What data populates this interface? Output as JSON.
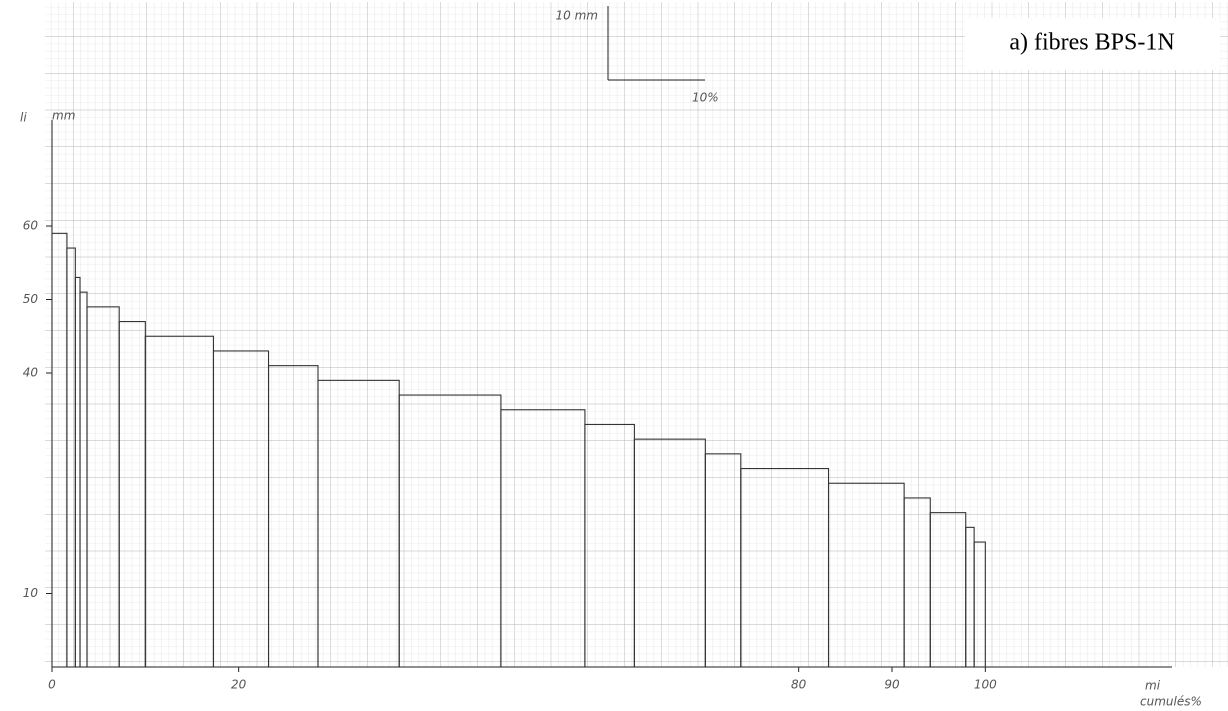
{
  "chart_data": {
    "type": "histogram",
    "title": "a) fibres BPS-1N",
    "ylabel": "li",
    "yunit": "mm",
    "xlabel": "mi",
    "xunit": "cumulés%",
    "scale_y": "10 mm",
    "scale_x": "10%",
    "bins": [
      0,
      1.6,
      2.5,
      3.0,
      3.75,
      7.2,
      10,
      17.3,
      23.2,
      28.5,
      37.2,
      48.1,
      57.1,
      62.4,
      70,
      73.8,
      83.2,
      91.3,
      94.1,
      97.9,
      98.8,
      100
    ],
    "values": [
      59,
      57,
      53,
      51,
      49,
      47,
      45,
      43,
      41,
      39,
      37,
      35,
      33,
      31,
      29,
      27,
      25,
      23,
      21,
      19,
      17
    ],
    "color": "#333333",
    "xlim": [
      0,
      120
    ],
    "ylim": [
      0,
      90
    ],
    "xticks": [
      0,
      20,
      80,
      90,
      100
    ],
    "yticks": [
      10,
      40,
      50,
      60
    ],
    "grid": true
  }
}
